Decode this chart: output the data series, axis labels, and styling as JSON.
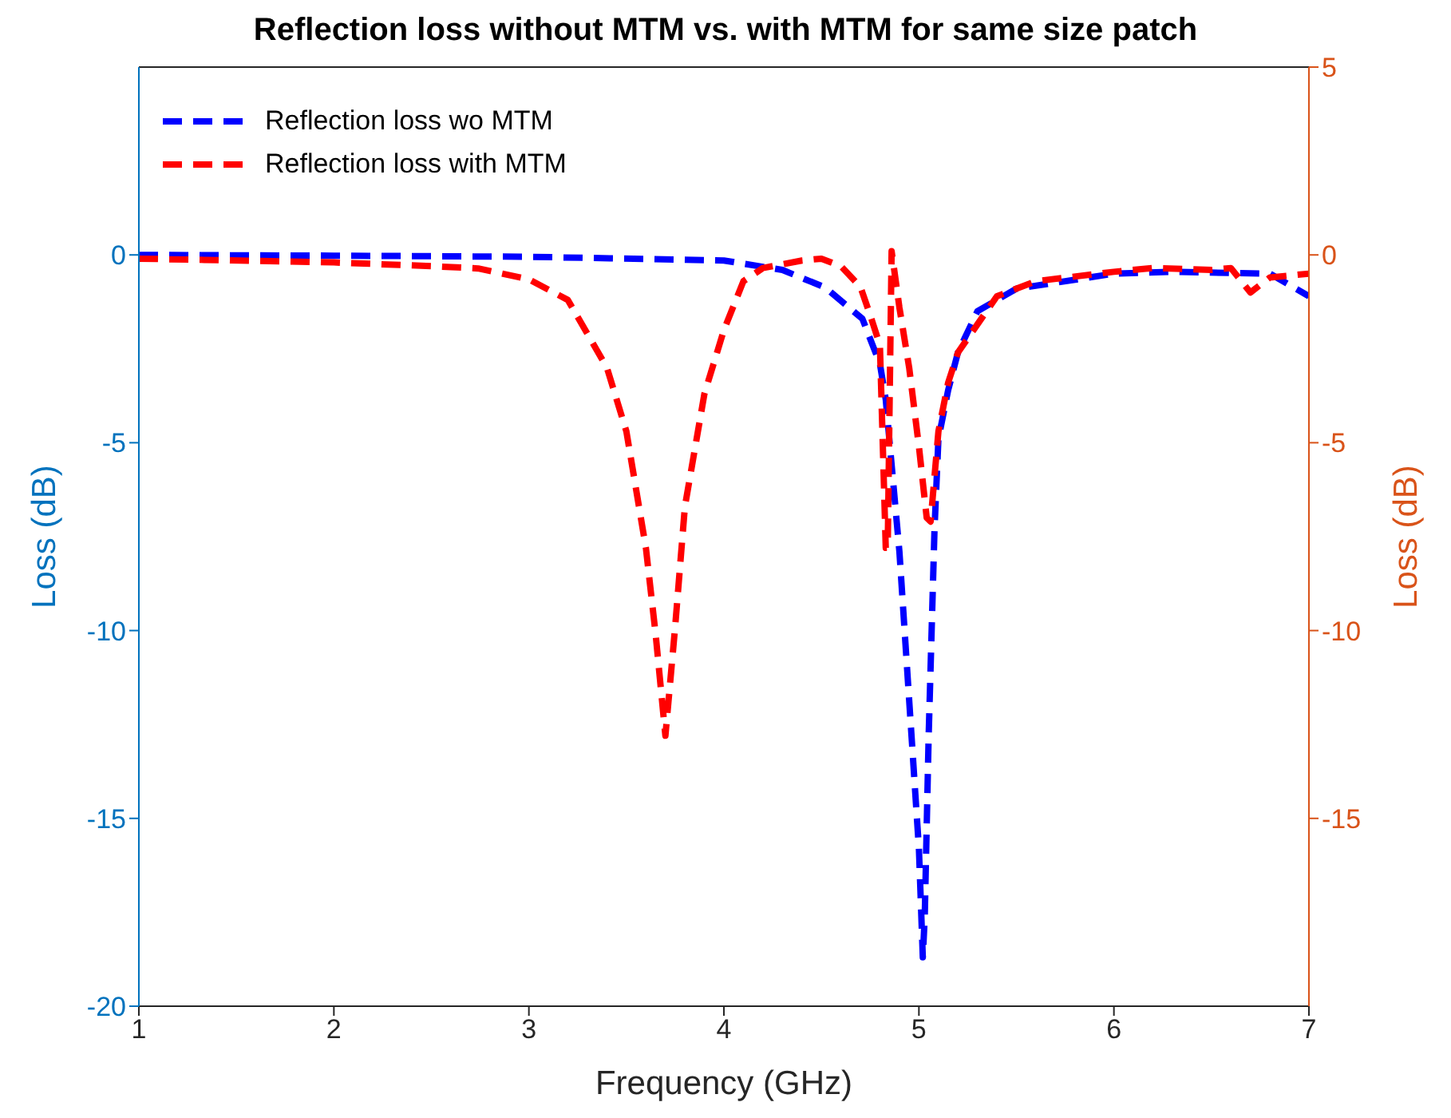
{
  "chart_data": {
    "type": "line",
    "title": "Reflection loss without MTM vs. with MTM for same size patch",
    "xlabel": "Frequency (GHz)",
    "ylabel": "Loss (dB)",
    "y2label": "Loss (dB)",
    "xlim": [
      1,
      7
    ],
    "xticks": [
      1,
      2,
      3,
      4,
      5,
      6,
      7
    ],
    "ylim": [
      -20,
      5
    ],
    "yticks": [
      -20,
      -15,
      -10,
      -5,
      0
    ],
    "y2lim": [
      -20,
      5
    ],
    "y2ticks": [
      -15,
      -10,
      -5,
      0,
      5
    ],
    "legend": "top left",
    "marker": "none",
    "series": [
      {
        "name": "Reflection loss wo MTM",
        "color": "#0000ff",
        "line_style": "dashed",
        "x": [
          1,
          2,
          3,
          4,
          4.3,
          4.52,
          4.71,
          4.8,
          4.83,
          4.9,
          5.0,
          5.02,
          5.03,
          5.05,
          5.08,
          5.1,
          5.15,
          5.2,
          5.3,
          5.5,
          6,
          6.3,
          6.8,
          7
        ],
        "values": [
          0,
          -0.02,
          -0.05,
          -0.15,
          -0.4,
          -0.87,
          -1.7,
          -2.9,
          -3.85,
          -7.9,
          -15.8,
          -18.7,
          -17.6,
          -12.8,
          -7.3,
          -4.9,
          -3.6,
          -2.6,
          -1.5,
          -0.9,
          -0.5,
          -0.45,
          -0.5,
          -1.1
        ]
      },
      {
        "name": "Reflection loss with MTM",
        "color": "#ff0000",
        "line_style": "dashed",
        "x": [
          1,
          2,
          2.5,
          2.74,
          3,
          3.2,
          3.4,
          3.5,
          3.6,
          3.65,
          3.7,
          3.75,
          3.8,
          3.9,
          4,
          4.1,
          4.2,
          4.4,
          4.5,
          4.6,
          4.7,
          4.75,
          4.8,
          4.83,
          4.84,
          4.86,
          4.9,
          4.95,
          5,
          5.04,
          5.06,
          5.1,
          5.15,
          5.2,
          5.4,
          5.6,
          6,
          6.2,
          6.5,
          6.6,
          6.7,
          6.8,
          7
        ],
        "values": [
          -0.1,
          -0.2,
          -0.3,
          -0.36,
          -0.65,
          -1.2,
          -3,
          -4.7,
          -7.8,
          -10.1,
          -12.8,
          -9.9,
          -6.7,
          -3.7,
          -2,
          -0.7,
          -0.35,
          -0.15,
          -0.1,
          -0.3,
          -0.85,
          -1.6,
          -2.4,
          -7.8,
          -7.8,
          0.1,
          -1.4,
          -3,
          -5.1,
          -7,
          -7.1,
          -4.7,
          -3.4,
          -2.6,
          -1.1,
          -0.7,
          -0.45,
          -0.35,
          -0.4,
          -0.35,
          -1,
          -0.6,
          -0.5
        ]
      }
    ]
  }
}
